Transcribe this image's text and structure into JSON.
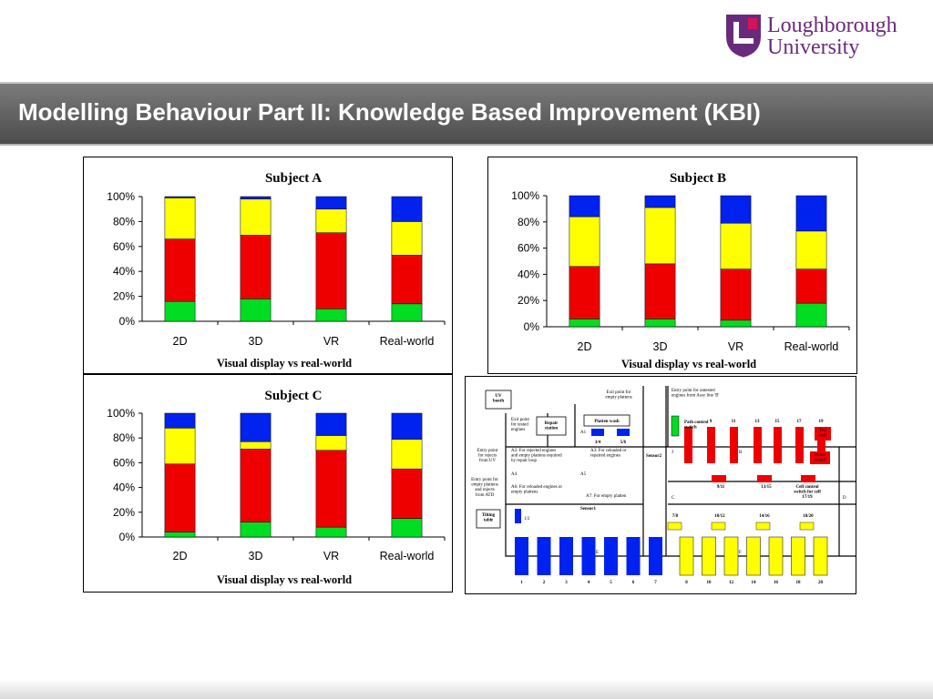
{
  "header": {
    "title": "Modelling Behaviour Part II: Knowledge Based Improvement (KBI)",
    "logo_line1": "Loughborough",
    "logo_line2": "University"
  },
  "colors": {
    "green": "#00dd22",
    "red": "#ee0000",
    "yellow": "#ffff00",
    "blue": "#0022ee",
    "logo": "#6a2a7c"
  },
  "chart_data": [
    {
      "type": "bar",
      "stacked": true,
      "title": "Subject A",
      "categories": [
        "2D",
        "3D",
        "VR",
        "Real-world"
      ],
      "xlabel": "Visual display vs real-world",
      "ylabel": "",
      "ylim": [
        0,
        100
      ],
      "yticks": [
        "0%",
        "20%",
        "40%",
        "60%",
        "80%",
        "100%"
      ],
      "series": [
        {
          "name": "green",
          "values": [
            16,
            18,
            10,
            14
          ]
        },
        {
          "name": "red",
          "values": [
            50,
            51,
            61,
            39
          ]
        },
        {
          "name": "yellow",
          "values": [
            33,
            29,
            19,
            27
          ]
        },
        {
          "name": "blue",
          "values": [
            1,
            2,
            10,
            20
          ]
        }
      ]
    },
    {
      "type": "bar",
      "stacked": true,
      "title": "Subject B",
      "categories": [
        "2D",
        "3D",
        "VR",
        "Real-world"
      ],
      "xlabel": "Visual display vs real-world",
      "ylabel": "",
      "ylim": [
        0,
        100
      ],
      "yticks": [
        "0%",
        "20%",
        "40%",
        "60%",
        "80%",
        "100%"
      ],
      "series": [
        {
          "name": "green",
          "values": [
            6,
            6,
            5,
            18
          ]
        },
        {
          "name": "red",
          "values": [
            40,
            42,
            39,
            26
          ]
        },
        {
          "name": "yellow",
          "values": [
            38,
            43,
            35,
            29
          ]
        },
        {
          "name": "blue",
          "values": [
            16,
            9,
            21,
            27
          ]
        }
      ]
    },
    {
      "type": "bar",
      "stacked": true,
      "title": "Subject C",
      "categories": [
        "2D",
        "3D",
        "VR",
        "Real-world"
      ],
      "xlabel": "Visual display vs real-world",
      "ylabel": "",
      "ylim": [
        0,
        100
      ],
      "yticks": [
        "0%",
        "20%",
        "40%",
        "60%",
        "80%",
        "100%"
      ],
      "series": [
        {
          "name": "green",
          "values": [
            4,
            12,
            8,
            15
          ]
        },
        {
          "name": "red",
          "values": [
            55,
            59,
            62,
            40
          ]
        },
        {
          "name": "yellow",
          "values": [
            29,
            6,
            12,
            24
          ]
        },
        {
          "name": "blue",
          "values": [
            12,
            23,
            18,
            21
          ]
        }
      ]
    }
  ],
  "diagram": {
    "uv_booth": [
      "UV",
      "booth"
    ],
    "exit_tested": [
      "Exit point",
      "for tested",
      "engines"
    ],
    "repair_station": [
      "Repair",
      "station"
    ],
    "platten_wash": "Platten wash",
    "exit_empty": [
      "Exit point for",
      "empty plattens"
    ],
    "entry_untested": [
      "Entry point for untested",
      "engines from Assy line 'B'"
    ],
    "path_control": [
      "Path control",
      "switch"
    ],
    "top_numbers": [
      "9",
      "11",
      "13",
      "15",
      "17",
      "19"
    ],
    "red_small_label": [
      "Test",
      "cell"
    ],
    "waste_label": [
      "Waste",
      "tested"
    ],
    "a1": "A1",
    "n34": "3/4",
    "n56": "5/6",
    "entry_rejects": [
      "Entry point",
      "for rejects",
      "from UV"
    ],
    "a2": [
      "A2: For rejected engines",
      "and empty plattens required",
      "by repair loop"
    ],
    "a3": [
      "A3: For reloaded or",
      "repaired engines"
    ],
    "sensor2": "Sensor2",
    "j": "J",
    "b": "B",
    "a4": "A4",
    "a5": "A5",
    "entry_empty": [
      "Entry point for",
      "empty plattens",
      "and rejects",
      "from ATD"
    ],
    "a6": [
      "A6: For reloaded engines or",
      "empty plattens"
    ],
    "a7": "A7: For empty platten",
    "n911": "9/11",
    "n1315": "13/15",
    "cell_control": [
      "Cell control",
      "switch for cell",
      "17/19"
    ],
    "c": "C",
    "d": "D",
    "sensor1": "Sensor1",
    "tilting": [
      "Tilting",
      "table"
    ],
    "n12": "1/2",
    "n78": "7/8",
    "n1012": "10/12",
    "n1416": "14/16",
    "n1820": "18/20",
    "e": "E",
    "f": "F",
    "bottom_blue": [
      "1",
      "2",
      "3",
      "4",
      "5",
      "6",
      "7"
    ],
    "bottom_yellow": [
      "8",
      "10",
      "12",
      "14",
      "16",
      "18",
      "20"
    ]
  }
}
